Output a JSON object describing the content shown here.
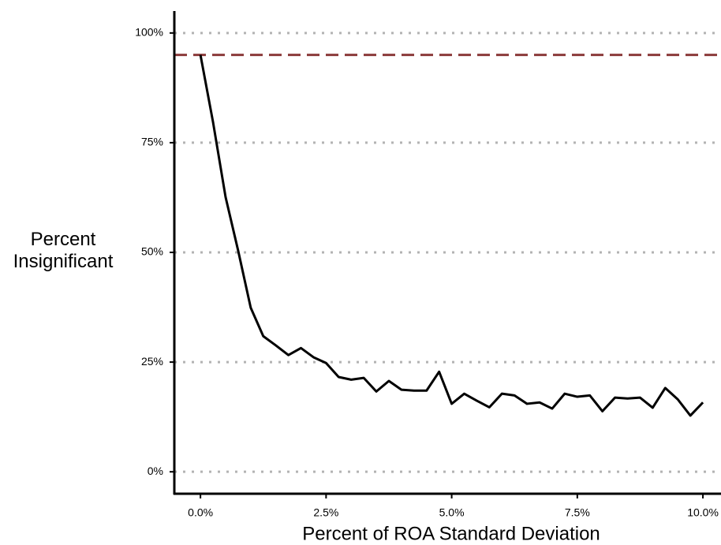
{
  "chart_data": {
    "type": "line",
    "xlabel": "Percent of ROA Standard Deviation",
    "ylabel": "Percent Insignificant",
    "x": [
      0,
      0.25,
      0.5,
      0.75,
      1,
      1.25,
      1.5,
      1.75,
      2,
      2.25,
      2.5,
      2.75,
      3,
      3.25,
      3.5,
      3.75,
      4,
      4.25,
      4.5,
      4.75,
      5,
      5.25,
      5.5,
      5.75,
      6,
      6.25,
      6.5,
      6.75,
      7,
      7.25,
      7.5,
      7.75,
      8,
      8.25,
      8.5,
      8.75,
      9,
      9.25,
      9.5,
      9.75,
      10
    ],
    "series": [
      {
        "color": "#000000",
        "values": [
          95,
          79.7,
          62.6,
          50.4,
          37.4,
          30.9,
          28.8,
          26.6,
          28.2,
          26.1,
          24.8,
          21.6,
          21.0,
          21.4,
          18.3,
          20.7,
          18.7,
          18.5,
          18.5,
          22.8,
          15.5,
          17.8,
          16.2,
          14.7,
          17.8,
          17.4,
          15.5,
          15.8,
          14.4,
          17.8,
          17.1,
          17.4,
          13.8,
          16.9,
          16.7,
          16.9,
          14.6,
          19.1,
          16.5,
          12.8,
          15.8
        ]
      }
    ],
    "reference_line": {
      "value": 95,
      "color": "#8b3a3a"
    },
    "xlim": [
      -0.52,
      10.36
    ],
    "ylim": [
      -5,
      105
    ],
    "xticks": [
      {
        "value": 0,
        "label": "0.0%"
      },
      {
        "value": 2.5,
        "label": "2.5%"
      },
      {
        "value": 5,
        "label": "5.0%"
      },
      {
        "value": 7.5,
        "label": "7.5%"
      },
      {
        "value": 10,
        "label": "10.0%"
      }
    ],
    "yticks": [
      {
        "value": 0,
        "label": "0%"
      },
      {
        "value": 25,
        "label": "25%"
      },
      {
        "value": 50,
        "label": "50%"
      },
      {
        "value": 75,
        "label": "75%"
      },
      {
        "value": 100,
        "label": "100%"
      }
    ],
    "grid": true,
    "grid_color": "#b3b3b3"
  }
}
